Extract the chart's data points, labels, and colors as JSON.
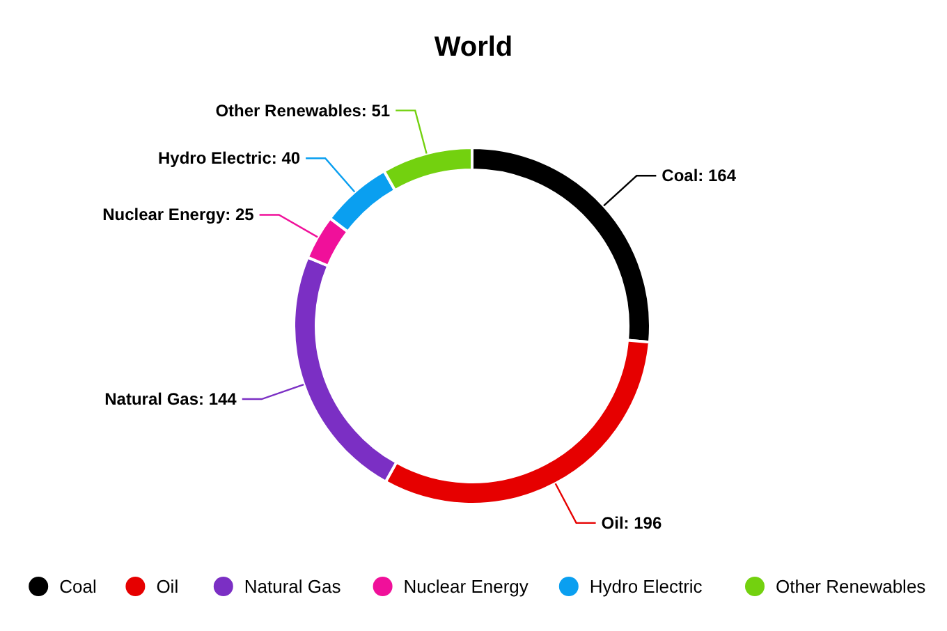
{
  "chart_data": {
    "type": "donut",
    "title": "World",
    "categories": [
      "Coal",
      "Oil",
      "Natural Gas",
      "Nuclear Energy",
      "Hydro Electric",
      "Other Renewables"
    ],
    "values": [
      164,
      196,
      144,
      25,
      40,
      51
    ],
    "value_labels": [
      "Coal: 164",
      "Oil: 196",
      "Natural Gas: 144",
      "Nuclear Energy: 25",
      "Hydro Electric: 40",
      "Other Renewables: 51"
    ],
    "colors": [
      "#000000",
      "#e60000",
      "#7b2fc4",
      "#f0109a",
      "#0a9ff0",
      "#73d10f"
    ],
    "legend": "bottom"
  }
}
